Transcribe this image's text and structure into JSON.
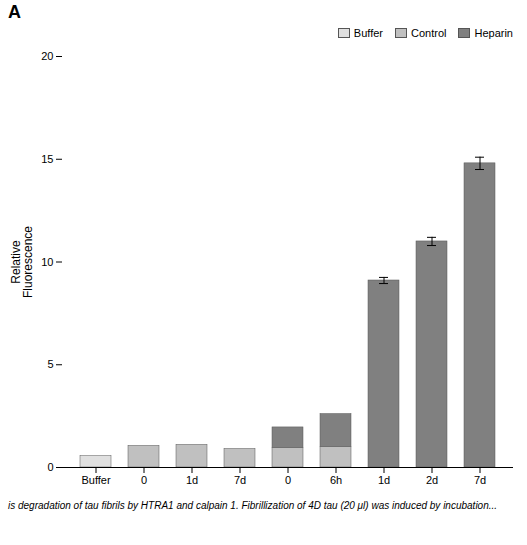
{
  "chart_data": {
    "type": "bar",
    "title": "A",
    "ylabel": "Relative\nFluorescence",
    "categories": [
      "Buffer",
      "0",
      "1d",
      "7d",
      "0",
      "6h",
      "1d",
      "2d",
      "7d"
    ],
    "series": [
      {
        "name": "Buffer",
        "color": "#e0e0e0",
        "values": [
          0.55,
          0,
          0,
          0,
          0,
          0,
          0,
          0,
          0
        ]
      },
      {
        "name": "Control",
        "color": "#c0c0c0",
        "values": [
          0,
          1.05,
          1.1,
          0.9,
          0.95,
          1.0,
          0,
          0,
          0
        ]
      },
      {
        "name": "Heparin",
        "color": "#808080",
        "values": [
          0,
          0,
          0,
          0,
          1.0,
          1.6,
          9.1,
          11.0,
          14.8
        ],
        "errors": [
          0,
          0,
          0,
          0,
          0,
          0,
          0.15,
          0.2,
          0.3
        ]
      }
    ],
    "ylim": [
      0,
      20
    ],
    "yticks": [
      0,
      5,
      10,
      15,
      20
    ],
    "grid": false,
    "legend": "upper right",
    "caption": "is degradation of tau fibrils by HTRA1 and calpain 1. Fibrillization of 4D tau (20 μl) was induced by incubation..."
  }
}
